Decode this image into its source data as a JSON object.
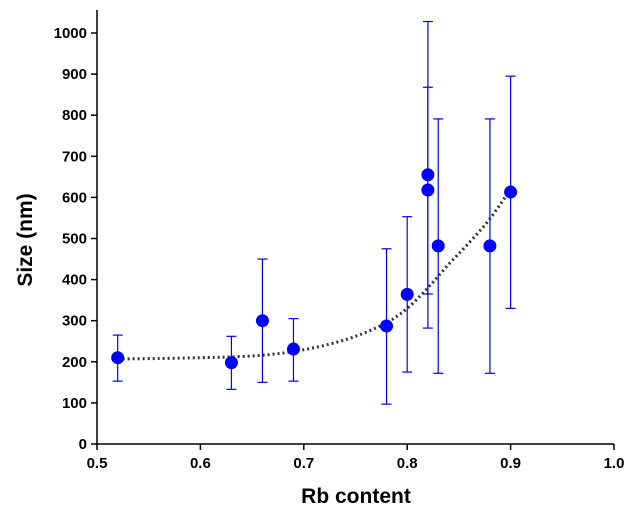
{
  "chart_data": {
    "type": "scatter",
    "xlabel": "Rb content",
    "ylabel": "Size (nm)",
    "xlim": [
      0.5,
      1.0
    ],
    "ylim": [
      0,
      1050
    ],
    "x_ticks": [
      {
        "value": 0.5,
        "label": "0.5"
      },
      {
        "value": 0.6,
        "label": "0.6"
      },
      {
        "value": 0.7,
        "label": "0.7"
      },
      {
        "value": 0.8,
        "label": "0.8"
      },
      {
        "value": 0.9,
        "label": "0.9"
      },
      {
        "value": 1.0,
        "label": "1.0"
      }
    ],
    "y_ticks": [
      {
        "value": 0,
        "label": "0"
      },
      {
        "value": 100,
        "label": "100"
      },
      {
        "value": 200,
        "label": "200"
      },
      {
        "value": 300,
        "label": "300"
      },
      {
        "value": 400,
        "label": "400"
      },
      {
        "value": 500,
        "label": "500"
      },
      {
        "value": 600,
        "label": "600"
      },
      {
        "value": 700,
        "label": "700"
      },
      {
        "value": 800,
        "label": "800"
      },
      {
        "value": 900,
        "label": "900"
      },
      {
        "value": 1000,
        "label": "1000"
      }
    ],
    "grid": false,
    "legend": "none",
    "colors": {
      "points": "#0000ff",
      "error_bars": "#0000ff",
      "trend_line": "#333333",
      "axes": "#000000"
    },
    "series": [
      {
        "marker": "circle",
        "points": [
          {
            "x": 0.52,
            "y": 210,
            "y_low": 153,
            "y_high": 265
          },
          {
            "x": 0.63,
            "y": 198,
            "y_low": 133,
            "y_high": 262
          },
          {
            "x": 0.66,
            "y": 300,
            "y_low": 150,
            "y_high": 450
          },
          {
            "x": 0.69,
            "y": 231,
            "y_low": 153,
            "y_high": 305
          },
          {
            "x": 0.78,
            "y": 287,
            "y_low": 97,
            "y_high": 475
          },
          {
            "x": 0.8,
            "y": 364,
            "y_low": 175,
            "y_high": 553
          },
          {
            "x": 0.82,
            "y": 655,
            "y_low": 282,
            "y_high": 1028
          },
          {
            "x": 0.82,
            "y": 618,
            "y_low": 365,
            "y_high": 868
          },
          {
            "x": 0.83,
            "y": 482,
            "y_low": 172,
            "y_high": 791
          },
          {
            "x": 0.88,
            "y": 482,
            "y_low": 172,
            "y_high": 791
          },
          {
            "x": 0.9,
            "y": 613,
            "y_low": 330,
            "y_high": 895
          }
        ]
      }
    ],
    "trend_line": {
      "style": "dotted",
      "points": [
        [
          0.52,
          207
        ],
        [
          0.56,
          208
        ],
        [
          0.6,
          210
        ],
        [
          0.63,
          212
        ],
        [
          0.66,
          216
        ],
        [
          0.69,
          225
        ],
        [
          0.72,
          240
        ],
        [
          0.75,
          262
        ],
        [
          0.78,
          295
        ],
        [
          0.8,
          330
        ],
        [
          0.82,
          380
        ],
        [
          0.84,
          437
        ],
        [
          0.86,
          490
        ],
        [
          0.88,
          548
        ],
        [
          0.9,
          620
        ]
      ]
    }
  }
}
